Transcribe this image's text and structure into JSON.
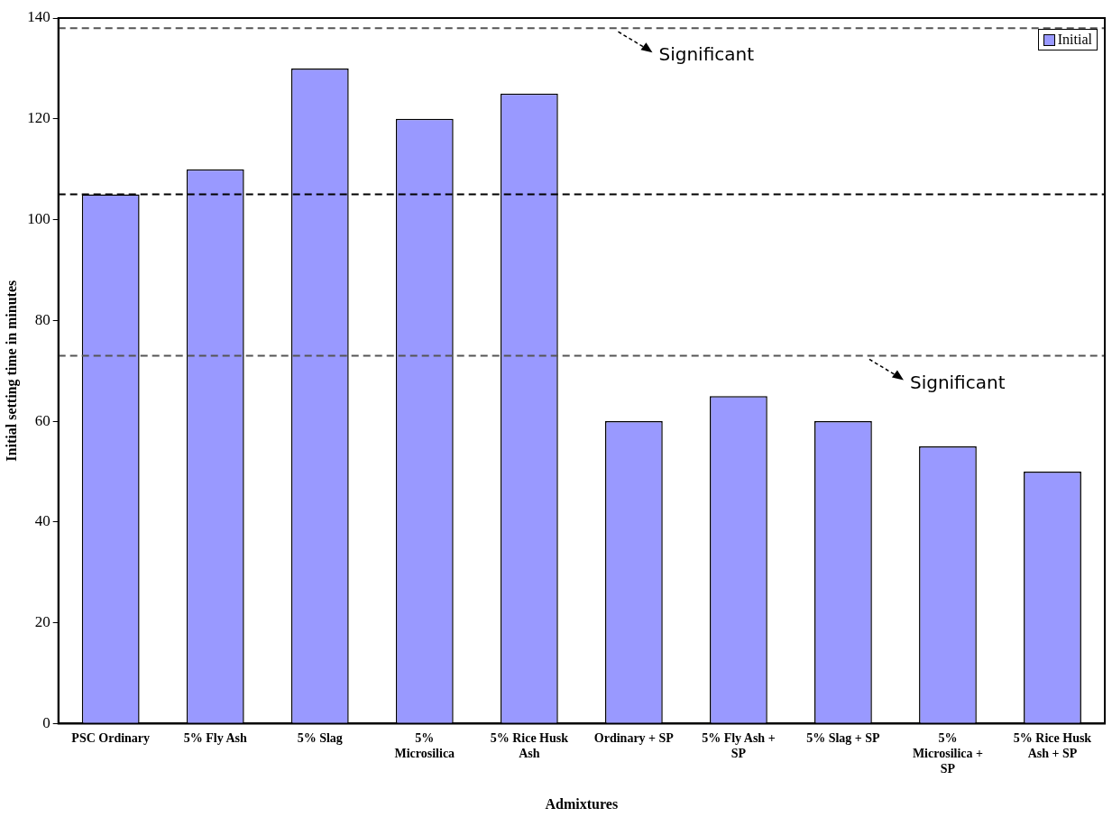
{
  "chart_data": {
    "type": "bar",
    "xlabel": "Admixtures",
    "ylabel": "Initial setting time in minutes",
    "categories": [
      "PSC Ordinary",
      "5% Fly Ash",
      "5% Slag",
      "5% Microsilica",
      "5% Rice Husk Ash",
      "Ordinary + SP",
      "5% Fly Ash + SP",
      "5% Slag + SP",
      "5% Microsilica + SP",
      "5% Rice Husk Ash + SP"
    ],
    "series": [
      {
        "name": "Initial",
        "color": "#9999ff",
        "values": [
          105,
          110,
          130,
          120,
          125,
          60,
          65,
          60,
          55,
          50
        ]
      }
    ],
    "ylim": [
      0,
      140
    ],
    "yticks": [
      0,
      20,
      40,
      60,
      80,
      100,
      120,
      140
    ],
    "grid": false,
    "legend": "top right",
    "ref_lines": [
      {
        "axis": "y",
        "value": 138,
        "label": "Significant",
        "color": "#555555",
        "line_style": "dashed"
      },
      {
        "axis": "y",
        "value": 105,
        "color": "#000000",
        "line_style": "dashed"
      },
      {
        "axis": "y",
        "value": 73,
        "label": "Significant",
        "color": "#555555",
        "line_style": "dashed"
      }
    ]
  }
}
